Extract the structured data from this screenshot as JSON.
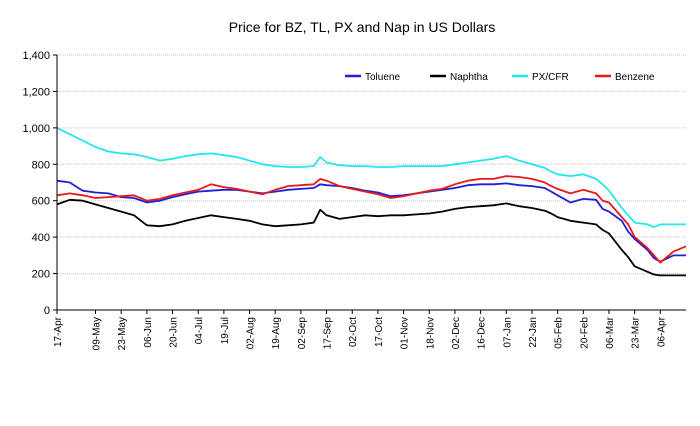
{
  "chart_data": {
    "type": "line",
    "title": "Price for BZ, TL, PX and Nap in US Dollars",
    "xlabel": "",
    "ylabel": "",
    "ylim": [
      0,
      1400
    ],
    "y_ticks": [
      0,
      200,
      400,
      600,
      800,
      1000,
      1200,
      1400
    ],
    "y_tick_labels": [
      "0",
      "200",
      "400",
      "600",
      "800",
      "1,000",
      "1,200",
      "1,400"
    ],
    "x_tick_labels": [
      "17-Apr",
      "09-May",
      "23-May",
      "06-Jun",
      "20-Jun",
      "04-Jul",
      "19-Jul",
      "02-Aug",
      "19-Aug",
      "02-Sep",
      "17-Sep",
      "02-Oct",
      "17-Oct",
      "01-Nov",
      "18-Nov",
      "02-Dec",
      "16-Dec",
      "07-Jan",
      "22-Jan",
      "05-Feb",
      "20-Feb",
      "06-Mar",
      "23-Mar",
      "06-Apr"
    ],
    "x_tick_index": [
      0,
      1.5,
      2.5,
      3.5,
      4.5,
      5.5,
      6.5,
      7.5,
      8.5,
      9.5,
      10.5,
      11.5,
      12.5,
      13.5,
      14.5,
      15.5,
      16.5,
      17.5,
      18.5,
      19.5,
      20.5,
      21.5,
      22.5,
      23.5
    ],
    "x_range": [
      0,
      24.5
    ],
    "grid": "horizontal",
    "legend_position": "top-right",
    "series": [
      {
        "name": "Toluene",
        "color": "#1f1fd6",
        "x": [
          0,
          0.5,
          1,
          1.5,
          2,
          2.5,
          3,
          3.5,
          4,
          4.5,
          5,
          5.5,
          6,
          6.5,
          7,
          7.5,
          8,
          8.5,
          9,
          9.5,
          10,
          10.25,
          10.5,
          11,
          11.5,
          12,
          12.5,
          13,
          13.5,
          14,
          14.5,
          15,
          15.5,
          16,
          16.5,
          17,
          17.5,
          18,
          18.5,
          19,
          19.25,
          19.5,
          20,
          20.5,
          21,
          21.25,
          21.5,
          22,
          22.25,
          22.5,
          23,
          23.25,
          23.5,
          24,
          24.5
        ],
        "y": [
          710,
          700,
          655,
          645,
          640,
          620,
          615,
          590,
          600,
          620,
          635,
          650,
          655,
          660,
          660,
          650,
          640,
          650,
          660,
          665,
          670,
          690,
          685,
          680,
          670,
          655,
          645,
          625,
          630,
          640,
          650,
          660,
          670,
          685,
          690,
          690,
          695,
          685,
          680,
          670,
          650,
          630,
          590,
          610,
          605,
          555,
          540,
          490,
          430,
          390,
          330,
          285,
          265,
          300,
          300
        ]
      },
      {
        "name": "Naphtha",
        "color": "#000000",
        "x": [
          0,
          0.5,
          1,
          1.5,
          2,
          2.5,
          3,
          3.5,
          4,
          4.5,
          5,
          5.5,
          6,
          6.5,
          7,
          7.5,
          8,
          8.5,
          9,
          9.5,
          10,
          10.25,
          10.5,
          11,
          11.5,
          12,
          12.5,
          13,
          13.5,
          14,
          14.5,
          15,
          15.5,
          16,
          16.5,
          17,
          17.5,
          18,
          18.5,
          19,
          19.25,
          19.5,
          20,
          20.5,
          21,
          21.25,
          21.5,
          22,
          22.25,
          22.5,
          23,
          23.25,
          23.5,
          24,
          24.5
        ],
        "y": [
          580,
          605,
          600,
          580,
          560,
          540,
          520,
          465,
          460,
          470,
          490,
          505,
          520,
          510,
          500,
          490,
          470,
          460,
          465,
          470,
          480,
          550,
          520,
          500,
          510,
          520,
          515,
          520,
          520,
          525,
          530,
          540,
          555,
          565,
          570,
          575,
          585,
          570,
          560,
          545,
          530,
          510,
          490,
          480,
          470,
          440,
          420,
          330,
          290,
          240,
          210,
          195,
          190,
          190,
          190
        ]
      },
      {
        "name": "PX/CFR",
        "color": "#22e6ee",
        "x": [
          0,
          0.5,
          1,
          1.5,
          2,
          2.5,
          3,
          3.5,
          4,
          4.5,
          5,
          5.5,
          6,
          6.5,
          7,
          7.5,
          8,
          8.5,
          9,
          9.5,
          10,
          10.25,
          10.5,
          11,
          11.5,
          12,
          12.5,
          13,
          13.5,
          14,
          14.5,
          15,
          15.5,
          16,
          16.5,
          17,
          17.5,
          18,
          18.5,
          19,
          19.25,
          19.5,
          20,
          20.5,
          21,
          21.25,
          21.5,
          22,
          22.25,
          22.5,
          23,
          23.25,
          23.5,
          24,
          24.5
        ],
        "y": [
          1000,
          965,
          930,
          895,
          870,
          860,
          855,
          840,
          820,
          830,
          845,
          855,
          860,
          850,
          840,
          820,
          800,
          790,
          785,
          785,
          790,
          840,
          810,
          795,
          790,
          790,
          785,
          785,
          790,
          790,
          790,
          790,
          800,
          810,
          820,
          830,
          845,
          820,
          800,
          780,
          760,
          745,
          735,
          745,
          720,
          690,
          655,
          560,
          520,
          480,
          470,
          455,
          470,
          470,
          470
        ]
      },
      {
        "name": "Benzene",
        "color": "#e81919",
        "x": [
          0,
          0.5,
          1,
          1.5,
          2,
          2.5,
          3,
          3.5,
          4,
          4.5,
          5,
          5.5,
          6,
          6.5,
          7,
          7.5,
          8,
          8.5,
          9,
          9.5,
          10,
          10.25,
          10.5,
          11,
          11.5,
          12,
          12.5,
          13,
          13.5,
          14,
          14.5,
          15,
          15.5,
          16,
          16.5,
          17,
          17.5,
          18,
          18.5,
          19,
          19.25,
          19.5,
          20,
          20.5,
          21,
          21.25,
          21.5,
          22,
          22.25,
          22.5,
          23,
          23.25,
          23.5,
          24,
          24.5
        ],
        "y": [
          630,
          640,
          630,
          615,
          620,
          625,
          630,
          600,
          610,
          630,
          645,
          660,
          690,
          675,
          665,
          650,
          635,
          660,
          680,
          685,
          690,
          720,
          710,
          680,
          665,
          650,
          635,
          615,
          625,
          640,
          655,
          665,
          690,
          710,
          720,
          720,
          735,
          730,
          720,
          700,
          680,
          665,
          640,
          660,
          640,
          600,
          590,
          510,
          470,
          400,
          340,
          300,
          260,
          320,
          350
        ]
      }
    ]
  }
}
